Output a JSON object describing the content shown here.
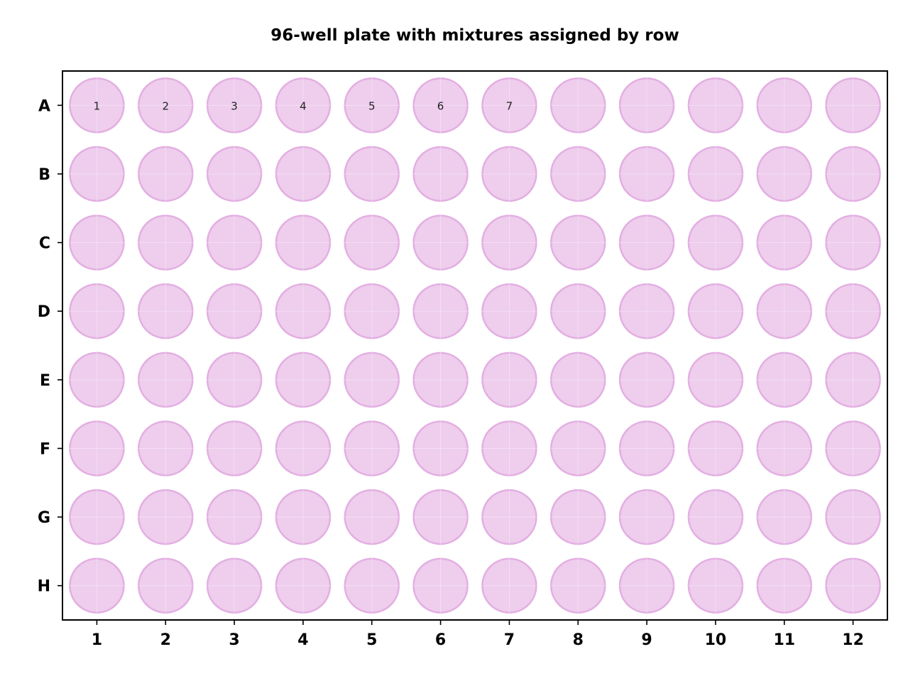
{
  "chart_data": {
    "type": "scatter",
    "title": "96-well plate with mixtures assigned by row",
    "xlabel": "",
    "ylabel": "",
    "columns": [
      "1",
      "2",
      "3",
      "4",
      "5",
      "6",
      "7",
      "8",
      "9",
      "10",
      "11",
      "12"
    ],
    "rows": [
      "A",
      "B",
      "C",
      "D",
      "E",
      "F",
      "G",
      "H"
    ],
    "xlim": [
      0.5,
      12.5
    ],
    "ylim": [
      8.5,
      0.5
    ],
    "grid": true,
    "legend": "none",
    "well_color": "#e7b8e6",
    "well_edge_color": "#e3aee2",
    "grid_color": "#ffffff",
    "wells": [
      {
        "row": "A",
        "col": 1,
        "label": "1"
      },
      {
        "row": "A",
        "col": 2,
        "label": "2"
      },
      {
        "row": "A",
        "col": 3,
        "label": "3"
      },
      {
        "row": "A",
        "col": 4,
        "label": "4"
      },
      {
        "row": "A",
        "col": 5,
        "label": "5"
      },
      {
        "row": "A",
        "col": 6,
        "label": "6"
      },
      {
        "row": "A",
        "col": 7,
        "label": "7"
      }
    ]
  }
}
